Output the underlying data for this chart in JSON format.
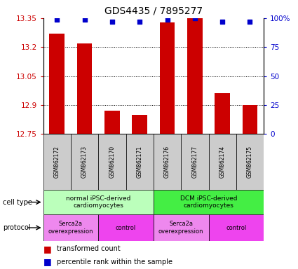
{
  "title": "GDS4435 / 7895277",
  "samples": [
    "GSM862172",
    "GSM862173",
    "GSM862170",
    "GSM862171",
    "GSM862176",
    "GSM862177",
    "GSM862174",
    "GSM862175"
  ],
  "bar_values": [
    13.27,
    13.22,
    12.87,
    12.85,
    13.33,
    13.35,
    12.96,
    12.9
  ],
  "percentile_values": [
    99,
    99,
    97,
    97,
    99,
    100,
    97,
    97
  ],
  "ylim": [
    12.75,
    13.35
  ],
  "yticks": [
    12.75,
    12.9,
    13.05,
    13.2,
    13.35
  ],
  "ytick_labels": [
    "12.75",
    "12.9",
    "13.05",
    "13.2",
    "13.35"
  ],
  "right_yticks": [
    0,
    25,
    50,
    75,
    100
  ],
  "right_ytick_labels": [
    "0",
    "25",
    "50",
    "75",
    "100%"
  ],
  "bar_color": "#cc0000",
  "percentile_color": "#0000cc",
  "cell_type_groups": [
    {
      "label": "normal iPSC-derived\ncardiomyocytes",
      "start": 0,
      "end": 4,
      "color": "#bbffbb"
    },
    {
      "label": "DCM iPSC-derived\ncardiomyocytes",
      "start": 4,
      "end": 8,
      "color": "#44ee44"
    }
  ],
  "protocol_groups": [
    {
      "label": "Serca2a\noverexpression",
      "start": 0,
      "end": 2,
      "color": "#ee88ee"
    },
    {
      "label": "control",
      "start": 2,
      "end": 4,
      "color": "#ee44ee"
    },
    {
      "label": "Serca2a\noverexpression",
      "start": 4,
      "end": 6,
      "color": "#ee88ee"
    },
    {
      "label": "control",
      "start": 6,
      "end": 8,
      "color": "#ee44ee"
    }
  ],
  "legend_items": [
    {
      "label": "transformed count",
      "color": "#cc0000"
    },
    {
      "label": "percentile rank within the sample",
      "color": "#0000cc"
    }
  ],
  "ylabel_left_color": "#cc0000",
  "ylabel_right_color": "#0000cc",
  "background_color": "#ffffff",
  "sample_bg_color": "#cccccc"
}
